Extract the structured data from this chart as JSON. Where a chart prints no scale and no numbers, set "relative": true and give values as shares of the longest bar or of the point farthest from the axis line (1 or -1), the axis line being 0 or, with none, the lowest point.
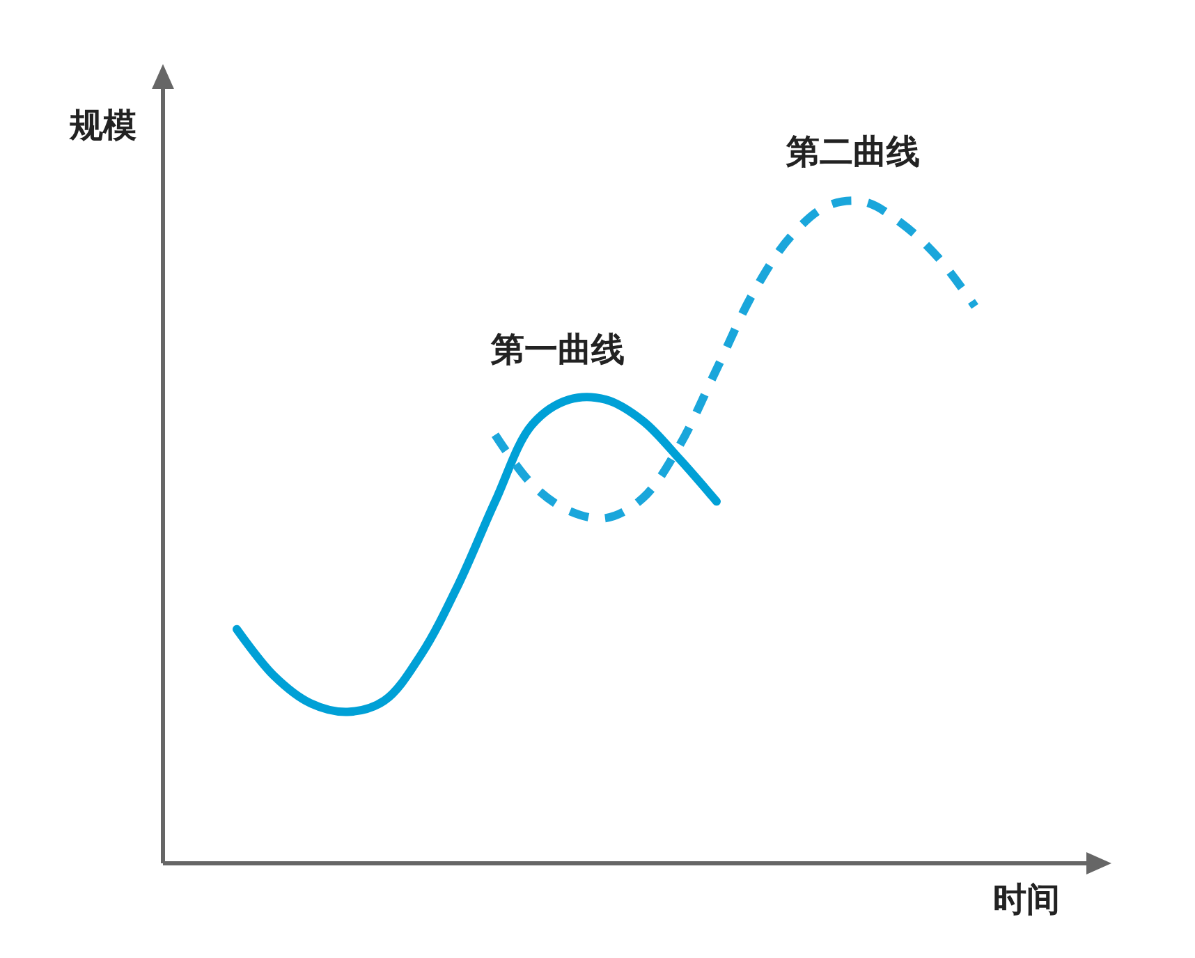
{
  "chart_data": {
    "type": "line",
    "relative": true,
    "xlabel": "时间",
    "ylabel": "规模",
    "categories": [
      null,
      null,
      null,
      null,
      null,
      null,
      null,
      null,
      null,
      null,
      null,
      null,
      null,
      null,
      null,
      null,
      null,
      null,
      null,
      null,
      null
    ],
    "series": [
      {
        "name": "第一曲线",
        "color": "#00a0d6",
        "line_style": "solid",
        "values": [
          0.354,
          0.284,
          0.242,
          0.229,
          0.246,
          0.316,
          0.421,
          0.547,
          0.663,
          0.701,
          0.701,
          0.669,
          0.611,
          0.547,
          null,
          null,
          null,
          null,
          null,
          null,
          null
        ]
      },
      {
        "name": "第二曲线",
        "color": "#1aa6db",
        "line_style": "dashed",
        "values": [
          null,
          null,
          null,
          null,
          null,
          null,
          null,
          0.648,
          0.573,
          0.533,
          0.522,
          0.552,
          0.632,
          0.747,
          0.863,
          0.947,
          0.994,
          1,
          0.968,
          0.916,
          0.842
        ]
      }
    ]
  }
}
